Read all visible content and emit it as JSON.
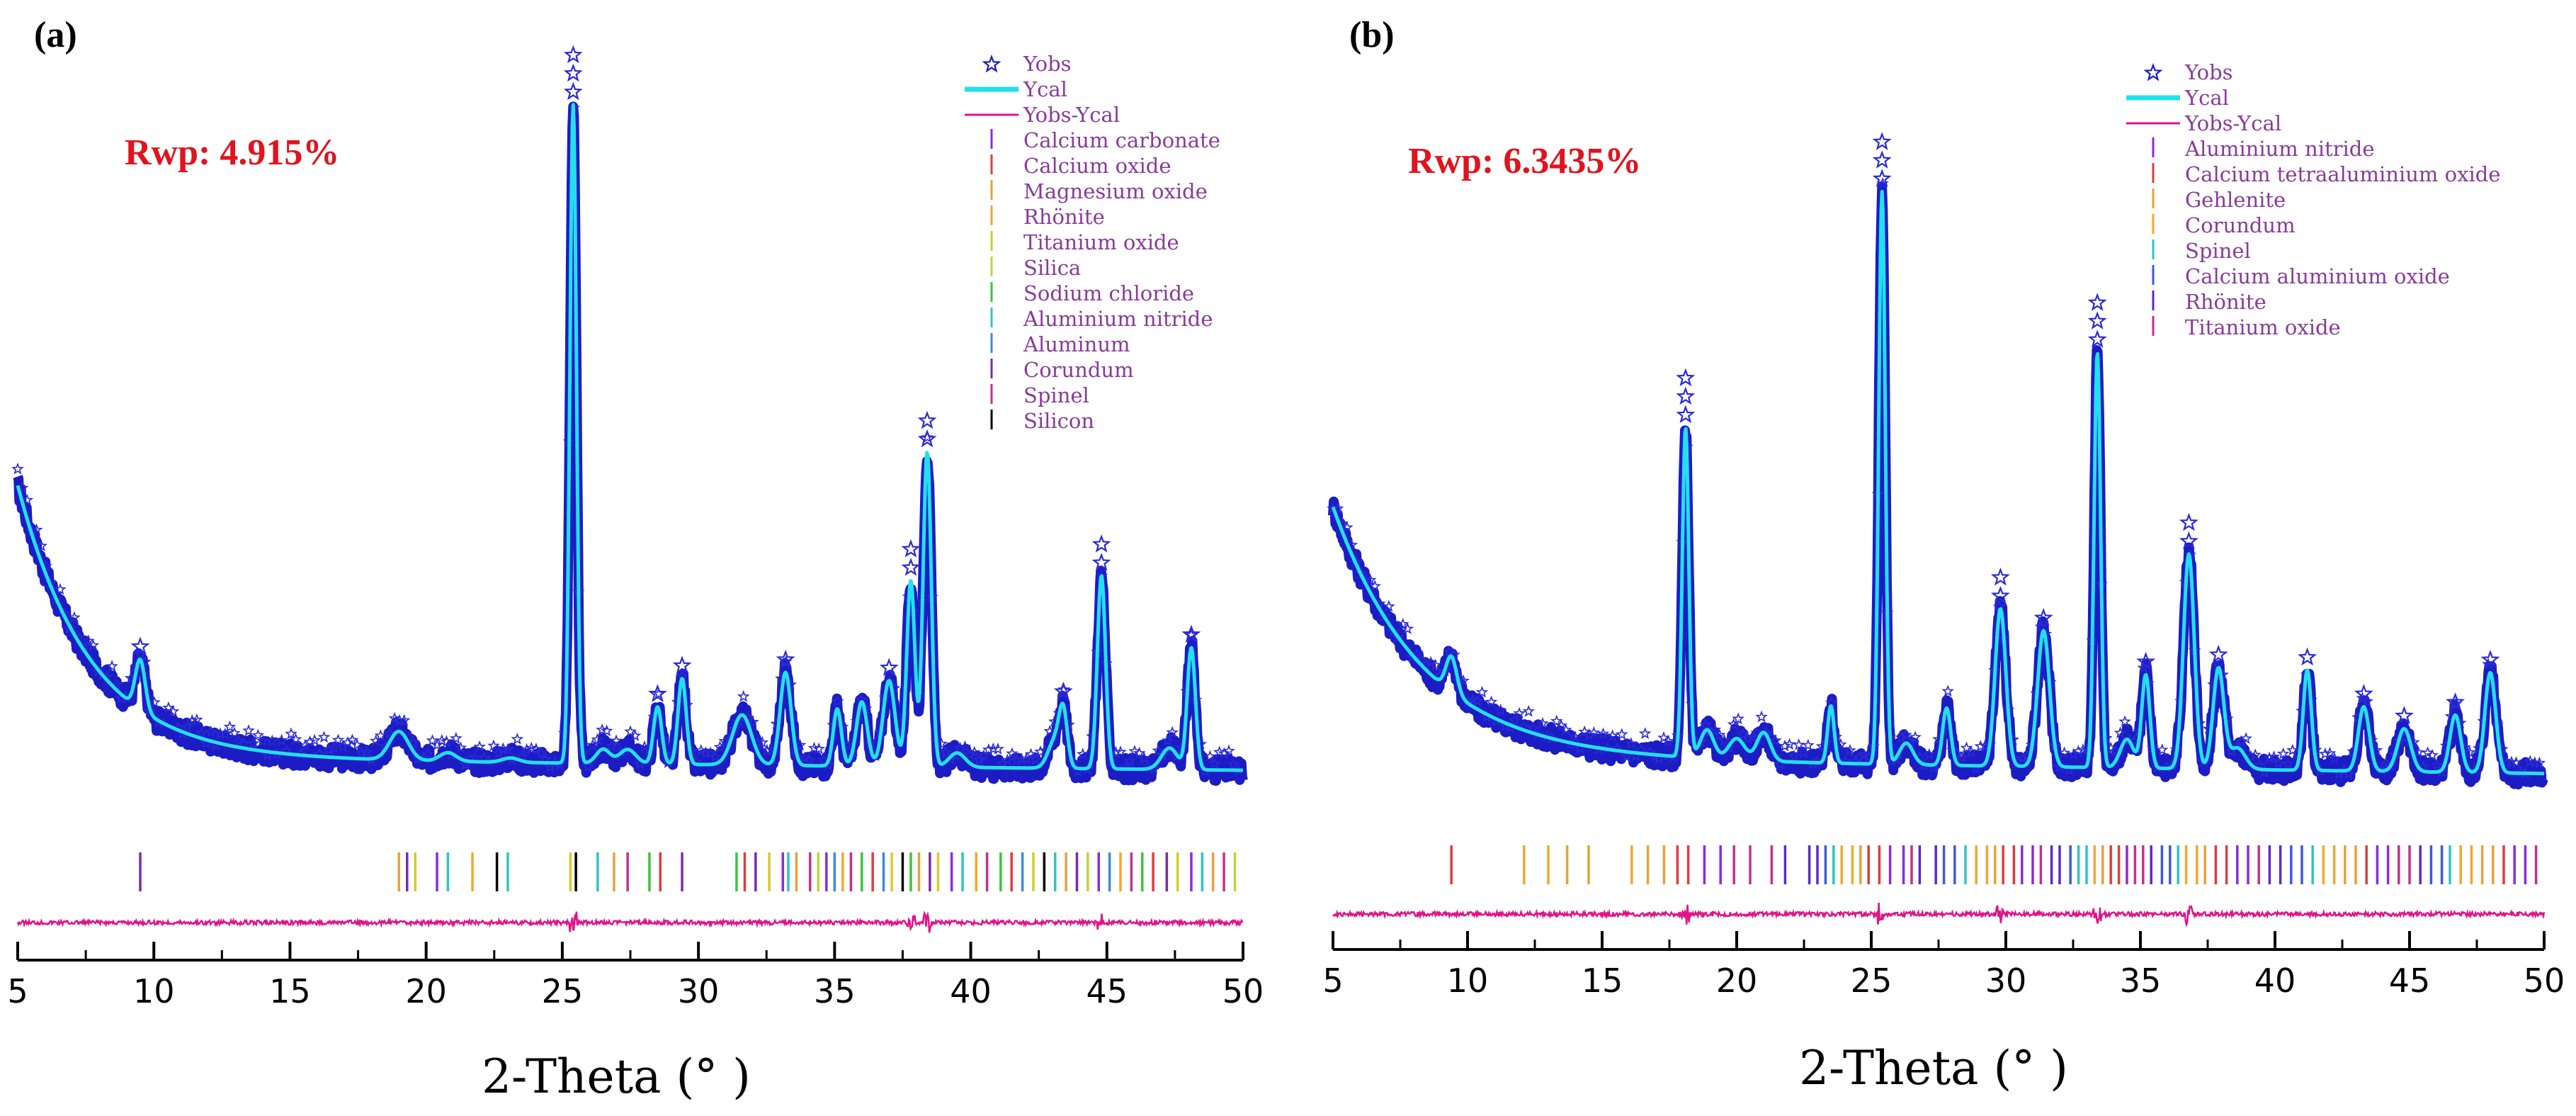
{
  "chart_data": [
    {
      "type": "line",
      "panel_label": "(a)",
      "annotation": "Rwp: 4.915%",
      "xlabel": "2-Theta (° )",
      "ylabel": "",
      "xlim": [
        5,
        50
      ],
      "ylim": [
        0,
        100
      ],
      "xticks": [
        "5",
        "10",
        "15",
        "20",
        "25",
        "30",
        "35",
        "40",
        "45",
        "50"
      ],
      "legend": [
        {
          "label": "Yobs",
          "kind": "star",
          "color": "#1c1cc4"
        },
        {
          "label": "Ycal",
          "kind": "line",
          "color": "#22e0ee"
        },
        {
          "label": "Yobs-Ycal",
          "kind": "line",
          "color": "#e0148a"
        },
        {
          "label": "Calcium carbonate",
          "kind": "bar",
          "color": "#8a2be2"
        },
        {
          "label": "Calcium oxide",
          "kind": "bar",
          "color": "#e03c3c"
        },
        {
          "label": "Magnesium oxide",
          "kind": "bar",
          "color": "#e6a23c"
        },
        {
          "label": "Rhönite",
          "kind": "bar",
          "color": "#f0a830"
        },
        {
          "label": "Titanium oxide",
          "kind": "bar",
          "color": "#d4cc30"
        },
        {
          "label": "Silica",
          "kind": "bar",
          "color": "#b8d83c"
        },
        {
          "label": "Sodium chloride",
          "kind": "bar",
          "color": "#3cc43c"
        },
        {
          "label": "Aluminium nitride",
          "kind": "bar",
          "color": "#30c4c4"
        },
        {
          "label": "Aluminum",
          "kind": "bar",
          "color": "#3c8ae0"
        },
        {
          "label": "Corundum",
          "kind": "bar",
          "color": "#7a2ab0"
        },
        {
          "label": "Spinel",
          "kind": "bar",
          "color": "#c4308a"
        },
        {
          "label": "Silicon",
          "kind": "bar",
          "color": "#000000"
        }
      ],
      "background": {
        "amp": 38,
        "decay": 0.38,
        "base": 11,
        "tilt": -0.04
      },
      "peaks": [
        [
          9.5,
          7,
          0.18
        ],
        [
          19,
          4,
          0.35
        ],
        [
          20.8,
          1.2,
          0.3
        ],
        [
          23.1,
          0.6,
          0.3
        ],
        [
          25.4,
          92,
          0.12
        ],
        [
          26.5,
          2,
          0.25
        ],
        [
          27.4,
          2,
          0.3
        ],
        [
          28.5,
          8,
          0.15
        ],
        [
          29.4,
          12,
          0.15
        ],
        [
          31.6,
          7,
          0.35
        ],
        [
          33.2,
          13,
          0.2
        ],
        [
          35.1,
          8,
          0.15
        ],
        [
          36,
          9,
          0.2
        ],
        [
          37,
          12,
          0.22
        ],
        [
          37.8,
          26,
          0.15
        ],
        [
          38.4,
          44,
          0.15
        ],
        [
          39.5,
          2,
          0.3
        ],
        [
          43.1,
          4,
          0.25
        ],
        [
          43.4,
          7,
          0.15
        ],
        [
          44.8,
          27,
          0.15
        ],
        [
          47.3,
          3,
          0.3
        ],
        [
          48.1,
          17,
          0.15
        ]
      ],
      "star_peaks": [
        9.5,
        25.4,
        28.5,
        29.4,
        33.2,
        37,
        37.8,
        38.4,
        43.4,
        44.8,
        48.1
      ],
      "reflections": [
        9.5,
        19.0,
        19.3,
        19.6,
        20.4,
        20.8,
        21.7,
        22.6,
        23.0,
        25.3,
        25.5,
        26.3,
        26.9,
        27.4,
        28.2,
        28.6,
        29.4,
        31.4,
        31.7,
        32.1,
        32.6,
        33.1,
        33.3,
        33.6,
        34.1,
        34.4,
        34.7,
        35.0,
        35.3,
        35.6,
        36.0,
        36.4,
        36.8,
        37.1,
        37.5,
        37.8,
        38.1,
        38.5,
        38.8,
        39.3,
        39.7,
        40.2,
        40.6,
        41.1,
        41.5,
        41.9,
        42.3,
        42.7,
        43.1,
        43.5,
        43.9,
        44.3,
        44.7,
        45.1,
        45.5,
        45.9,
        46.3,
        46.7,
        47.2,
        47.6,
        48.1,
        48.5,
        48.9,
        49.3,
        49.7
      ]
    },
    {
      "type": "line",
      "panel_label": "(b)",
      "annotation": "Rwp: 6.3435%",
      "xlabel": "2-Theta (° )",
      "ylabel": "",
      "xlim": [
        5,
        50
      ],
      "ylim": [
        0,
        100
      ],
      "xticks": [
        "5",
        "10",
        "15",
        "20",
        "25",
        "30",
        "35",
        "40",
        "45",
        "50"
      ],
      "legend": [
        {
          "label": "Yobs",
          "kind": "star",
          "color": "#1c1cc4"
        },
        {
          "label": "Ycal",
          "kind": "line",
          "color": "#22e0ee"
        },
        {
          "label": "Yobs-Ycal",
          "kind": "line",
          "color": "#e0148a"
        },
        {
          "label": "Aluminium nitride",
          "kind": "bar",
          "color": "#8a2be2"
        },
        {
          "label": "Calcium tetraaluminium oxide",
          "kind": "bar",
          "color": "#e03c3c"
        },
        {
          "label": "Gehlenite",
          "kind": "bar",
          "color": "#e6a23c"
        },
        {
          "label": "Corundum",
          "kind": "bar",
          "color": "#f0a830"
        },
        {
          "label": "Spinel",
          "kind": "bar",
          "color": "#30c4c4"
        },
        {
          "label": "Calcium aluminium oxide",
          "kind": "bar",
          "color": "#3c5ae0"
        },
        {
          "label": "Rhönite",
          "kind": "bar",
          "color": "#5a2ad0"
        },
        {
          "label": "Titanium oxide",
          "kind": "bar",
          "color": "#c4308a"
        }
      ],
      "background": {
        "amp": 35,
        "decay": 0.3,
        "base": 11,
        "tilt": -0.05
      },
      "peaks": [
        [
          9.4,
          5,
          0.2
        ],
        [
          18.1,
          46,
          0.12
        ],
        [
          18.9,
          4,
          0.25
        ],
        [
          20,
          3,
          0.3
        ],
        [
          21,
          4,
          0.25
        ],
        [
          23.5,
          8,
          0.12
        ],
        [
          25.4,
          80,
          0.12
        ],
        [
          26.3,
          3,
          0.25
        ],
        [
          27.8,
          8,
          0.15
        ],
        [
          29.8,
          22,
          0.2
        ],
        [
          31.4,
          19,
          0.22
        ],
        [
          33.4,
          58,
          0.12
        ],
        [
          34.5,
          4,
          0.25
        ],
        [
          35.2,
          13,
          0.15
        ],
        [
          36.8,
          30,
          0.2
        ],
        [
          37.9,
          14,
          0.2
        ],
        [
          38.6,
          3,
          0.3
        ],
        [
          41.2,
          14,
          0.15
        ],
        [
          43.3,
          9,
          0.2
        ],
        [
          44.8,
          6,
          0.25
        ],
        [
          46.7,
          8,
          0.2
        ],
        [
          48,
          14,
          0.2
        ]
      ],
      "star_peaks": [
        18.1,
        25.4,
        29.8,
        31.4,
        33.4,
        35.2,
        36.8,
        37.9,
        41.2,
        43.3,
        44.8,
        46.7,
        48
      ],
      "reflections": [
        9.4,
        12.1,
        13.0,
        13.7,
        14.5,
        16.1,
        16.7,
        17.3,
        17.8,
        18.2,
        18.8,
        19.4,
        19.9,
        20.5,
        21.3,
        21.8,
        22.7,
        23.0,
        23.3,
        23.6,
        23.9,
        24.3,
        24.6,
        24.9,
        25.3,
        25.7,
        26.2,
        26.5,
        26.8,
        27.4,
        27.7,
        28.1,
        28.5,
        28.9,
        29.3,
        29.6,
        29.9,
        30.3,
        30.6,
        31.0,
        31.3,
        31.7,
        32.0,
        32.4,
        32.7,
        33.0,
        33.3,
        33.6,
        33.9,
        34.2,
        34.5,
        34.8,
        35.1,
        35.4,
        35.8,
        36.1,
        36.4,
        36.7,
        37.1,
        37.4,
        37.8,
        38.2,
        38.6,
        39.0,
        39.4,
        39.8,
        40.2,
        40.6,
        41.0,
        41.4,
        41.8,
        42.2,
        42.6,
        43.0,
        43.4,
        43.8,
        44.2,
        44.6,
        45.0,
        45.4,
        45.8,
        46.2,
        46.5,
        46.9,
        47.3,
        47.7,
        48.1,
        48.5,
        48.9,
        49.3,
        49.7
      ]
    }
  ]
}
